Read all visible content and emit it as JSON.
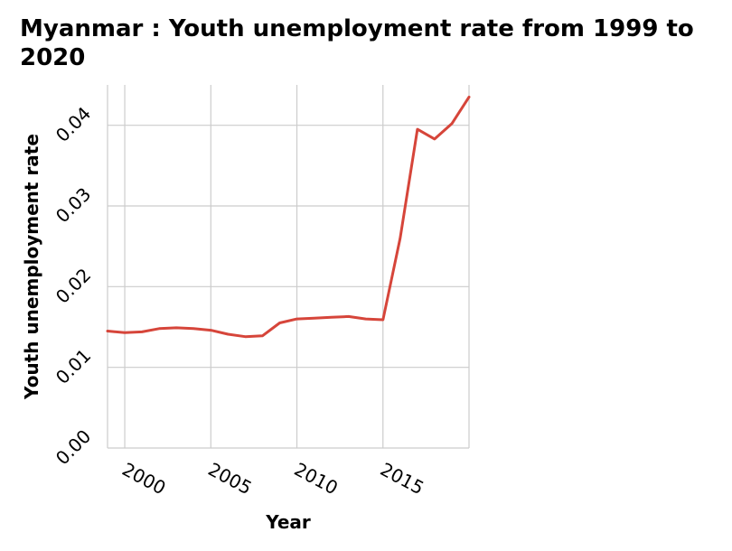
{
  "chart_data": {
    "type": "line",
    "title": "Myanmar : Youth unemployment rate from 1999 to 2020",
    "xlabel": "Year",
    "ylabel": "Youth unemployment rate",
    "x_ticks": [
      "2000",
      "2005",
      "2010",
      "2015"
    ],
    "y_ticks": [
      "0.00",
      "0.01",
      "0.02",
      "0.03",
      "0.04"
    ],
    "xlim": [
      1999,
      2020
    ],
    "ylim": [
      0,
      0.045
    ],
    "grid": true,
    "colors": {
      "line": "#d6453a",
      "grid": "#cccccc"
    },
    "series": [
      {
        "x": [
          1999,
          2000,
          2001,
          2002,
          2003,
          2004,
          2005,
          2006,
          2007,
          2008,
          2009,
          2010,
          2011,
          2012,
          2013,
          2014,
          2015,
          2016,
          2017,
          2018,
          2019,
          2020
        ],
        "values": [
          0.0145,
          0.0143,
          0.0144,
          0.0148,
          0.0149,
          0.0148,
          0.0146,
          0.0141,
          0.0138,
          0.0139,
          0.0155,
          0.016,
          0.0161,
          0.0162,
          0.0163,
          0.016,
          0.0159,
          0.026,
          0.0395,
          0.0383,
          0.0402,
          0.0435
        ]
      }
    ]
  }
}
